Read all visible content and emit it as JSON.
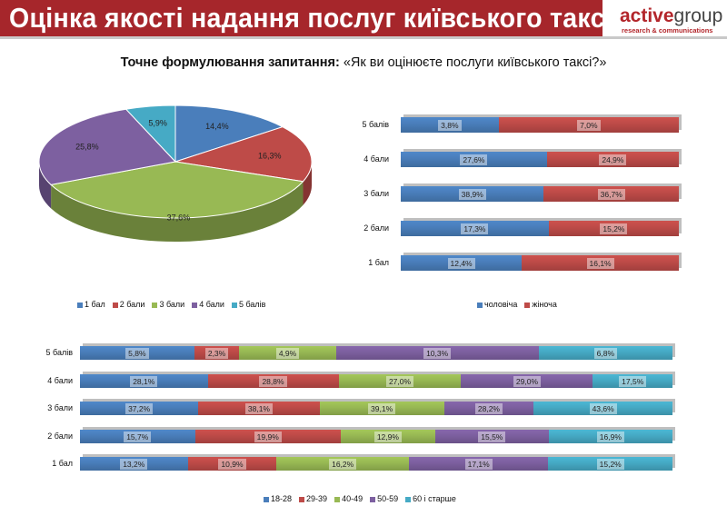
{
  "header": {
    "title": "Оцінка якості надання послуг київського таксі",
    "logo_main": "active",
    "logo_group": "group",
    "logo_sub": "research & communications"
  },
  "question": {
    "label": "Точне формулювання запитання:",
    "text": "«Як ви оцінюєте послуги київського таксі?»"
  },
  "colors": {
    "blue": "#4a7ebb",
    "red": "#be4b48",
    "green": "#98b954",
    "purple": "#7d60a0",
    "cyan": "#46aac5",
    "header": "#a6262b"
  },
  "chart_data": [
    {
      "type": "pie",
      "title": "",
      "categories": [
        "1 бал",
        "2 бали",
        "3 бали",
        "4 бали",
        "5 балів"
      ],
      "values": [
        14.4,
        16.3,
        37.6,
        25.8,
        5.9
      ],
      "labels": [
        "14,4%",
        "16,3%",
        "37,6%",
        "25,8%",
        "5,9%"
      ],
      "legend": "bottom"
    },
    {
      "type": "bar",
      "stacked": "percent",
      "orientation": "horizontal",
      "categories": [
        "5 балів",
        "4 бали",
        "3 бали",
        "2 бали",
        "1 бал"
      ],
      "series": [
        {
          "name": "чоловіча",
          "values": [
            3.8,
            27.6,
            38.9,
            17.3,
            12.4
          ],
          "labels": [
            "3,8%",
            "27,6%",
            "38,9%",
            "17,3%",
            "12,4%"
          ]
        },
        {
          "name": "жіноча",
          "values": [
            7.0,
            24.9,
            36.7,
            15.2,
            16.1
          ],
          "labels": [
            "7,0%",
            "24,9%",
            "36,7%",
            "15,2%",
            "16,1%"
          ]
        }
      ],
      "legend": "bottom"
    },
    {
      "type": "bar",
      "stacked": "percent",
      "orientation": "horizontal",
      "categories": [
        "5 балів",
        "4 бали",
        "3 бали",
        "2 бали",
        "1 бал"
      ],
      "series": [
        {
          "name": "18-28",
          "values": [
            5.8,
            28.1,
            37.2,
            15.7,
            13.2
          ],
          "labels": [
            "5,8%",
            "28,1%",
            "37,2%",
            "15,7%",
            "13,2%"
          ]
        },
        {
          "name": "29-39",
          "values": [
            2.3,
            28.8,
            38.1,
            19.9,
            10.9
          ],
          "labels": [
            "2,3%",
            "28,8%",
            "38,1%",
            "19,9%",
            "10,9%"
          ]
        },
        {
          "name": "40-49",
          "values": [
            4.9,
            27.0,
            39.1,
            12.9,
            16.2
          ],
          "labels": [
            "4,9%",
            "27,0%",
            "39,1%",
            "12,9%",
            "16,2%"
          ]
        },
        {
          "name": "50-59",
          "values": [
            10.3,
            29.0,
            28.2,
            15.5,
            17.1
          ],
          "labels": [
            "10,3%",
            "29,0%",
            "28,2%",
            "15,5%",
            "17,1%"
          ]
        },
        {
          "name": "60 і старше",
          "values": [
            6.8,
            17.5,
            43.6,
            16.9,
            15.2
          ],
          "labels": [
            "6,8%",
            "17,5%",
            "43,6%",
            "16,9%",
            "15,2%"
          ]
        }
      ],
      "legend": "bottom"
    }
  ]
}
